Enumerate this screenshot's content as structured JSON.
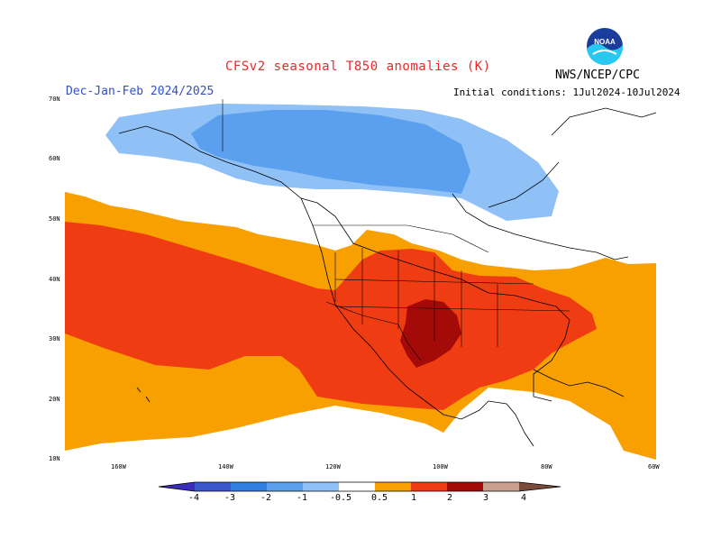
{
  "header": {
    "title": "CFSv2 seasonal T850 anomalies (K)",
    "period": "Dec-Jan-Feb 2024/2025",
    "agency": "NWS/NCEP/CPC",
    "initial_conditions": "Initial conditions: 1Jul2024-10Jul2024",
    "logo_text": "NOAA"
  },
  "axes": {
    "lat_labels": [
      "70N",
      "60N",
      "50N",
      "40N",
      "30N",
      "20N",
      "10N"
    ],
    "lon_labels": [
      "160W",
      "140W",
      "120W",
      "100W",
      "80W",
      "60W"
    ]
  },
  "legend": {
    "labels": [
      "-4",
      "-3",
      "-2",
      "-1",
      "-0.5",
      "0.5",
      "1",
      "2",
      "3",
      "4"
    ],
    "colors": [
      "#3a2bb8",
      "#3a57cc",
      "#2f7ee0",
      "#5aa0ee",
      "#8fc0f6",
      "#ffffff",
      "#f7a000",
      "#f03c12",
      "#a30a08",
      "#c9a090",
      "#7a4a3a"
    ]
  },
  "colors": {
    "neg_0_5": "#8fc0f6",
    "neg_1": "#5aa0ee",
    "pos_0_5": "#f7a000",
    "pos_1": "#f03c12",
    "pos_2": "#a30a08",
    "title": "#e8282a",
    "period": "#3050c8"
  }
}
